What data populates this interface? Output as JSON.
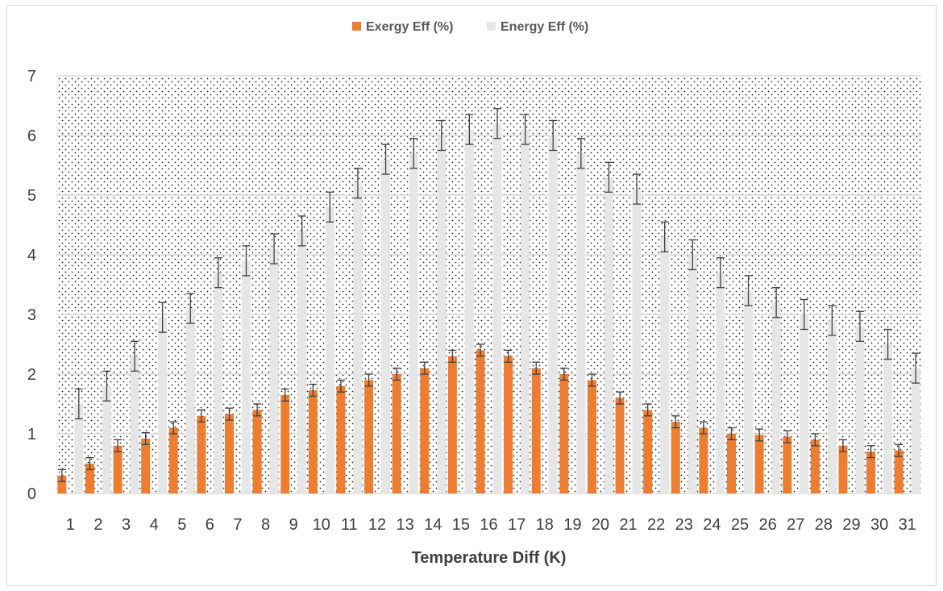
{
  "chart_data": {
    "type": "bar",
    "title": "",
    "xlabel": "Temperature Diff (K)",
    "ylabel": "",
    "ylim": [
      0,
      7
    ],
    "yticks": [
      0,
      1,
      2,
      3,
      4,
      5,
      6,
      7
    ],
    "grid": true,
    "legend_position": "top",
    "categories": [
      "1",
      "2",
      "3",
      "4",
      "5",
      "6",
      "7",
      "8",
      "9",
      "10",
      "11",
      "12",
      "13",
      "14",
      "15",
      "16",
      "17",
      "18",
      "19",
      "20",
      "21",
      "22",
      "23",
      "24",
      "25",
      "26",
      "27",
      "28",
      "29",
      "30",
      "31"
    ],
    "series": [
      {
        "name": "Exergy Eff (%)",
        "color": "#ed7d31",
        "values": [
          0.3,
          0.5,
          0.8,
          0.92,
          1.1,
          1.3,
          1.33,
          1.4,
          1.65,
          1.73,
          1.8,
          1.9,
          2.0,
          2.1,
          2.3,
          2.4,
          2.3,
          2.1,
          2.0,
          1.9,
          1.6,
          1.4,
          1.2,
          1.1,
          1.0,
          0.98,
          0.95,
          0.9,
          0.8,
          0.7,
          0.72
        ],
        "error": 0.1
      },
      {
        "name": "Energy Eff (%)",
        "color": "#e7e6e6",
        "values": [
          1.5,
          1.8,
          2.3,
          2.95,
          3.1,
          3.7,
          3.9,
          4.1,
          4.4,
          4.8,
          5.2,
          5.6,
          5.7,
          6.0,
          6.1,
          6.2,
          6.1,
          6.0,
          5.7,
          5.3,
          5.1,
          4.3,
          4.0,
          3.7,
          3.4,
          3.2,
          3.0,
          2.9,
          2.8,
          2.5,
          2.1
        ],
        "error": 0.25
      }
    ]
  },
  "colors": {
    "exergy": "#ed7d31",
    "energy": "#e7e6e6",
    "gridline": "#d9d9d9",
    "errorbar": "#404040"
  }
}
